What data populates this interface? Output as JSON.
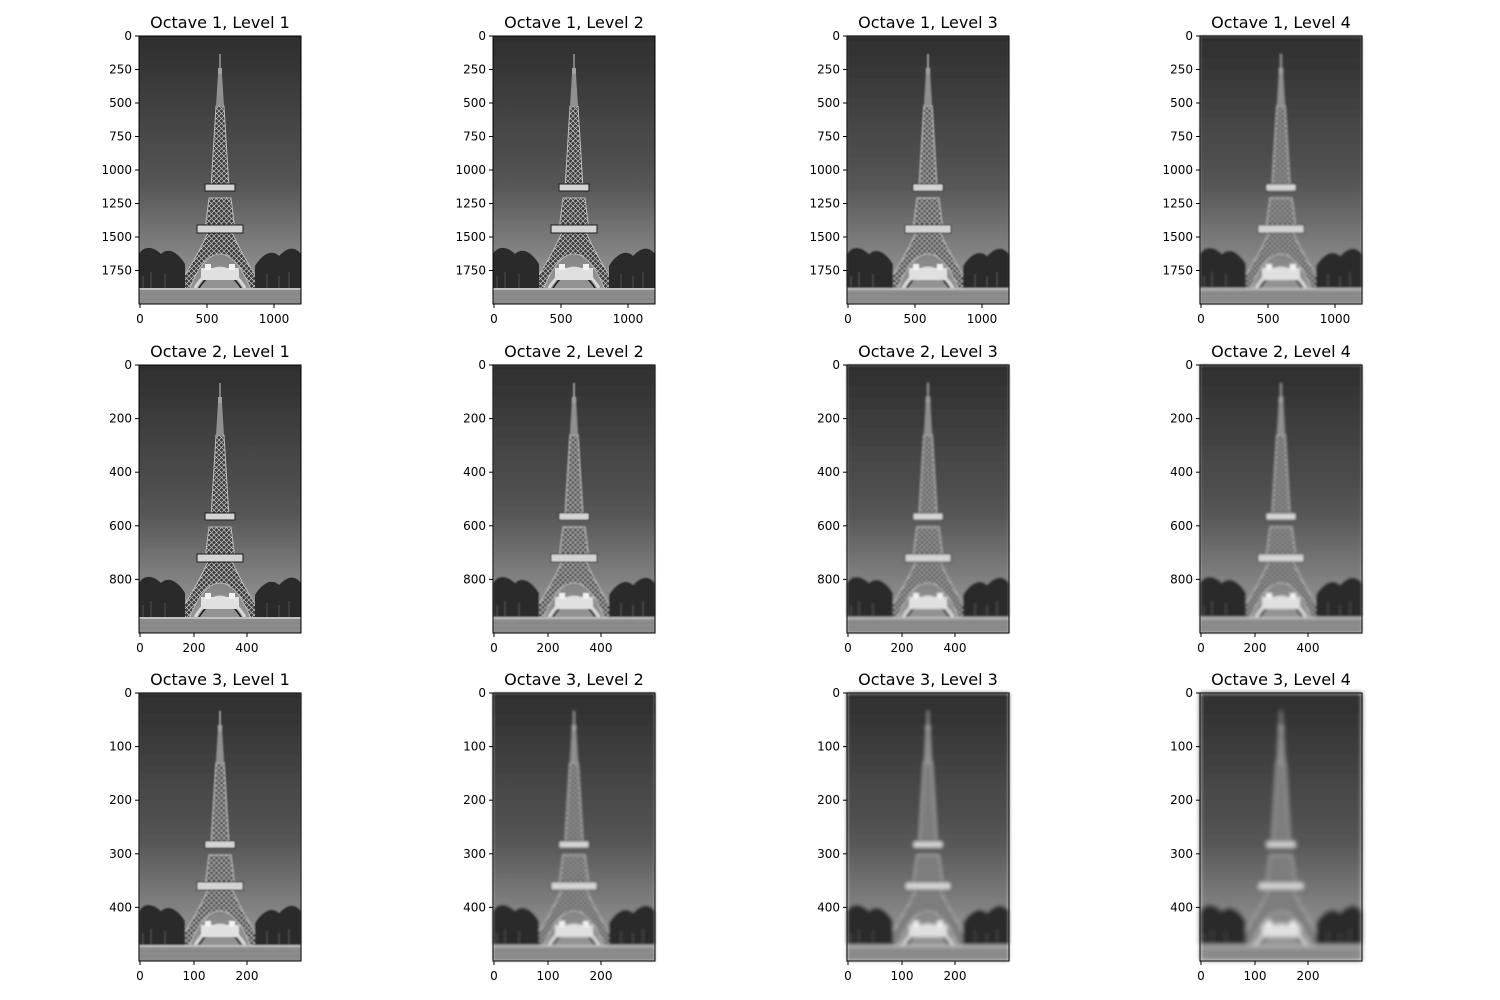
{
  "figure": {
    "panels": [
      {
        "title": "Octave 1, Level 1",
        "octave": 1,
        "level": 1,
        "blur_level": 0,
        "yticks": [
          "0",
          "250",
          "500",
          "750",
          "1000",
          "1250",
          "1500",
          "1750"
        ],
        "xticks": [
          "0",
          "500",
          "1000"
        ]
      },
      {
        "title": "Octave 1, Level 2",
        "octave": 1,
        "level": 2,
        "blur_level": 1,
        "yticks": [
          "0",
          "250",
          "500",
          "750",
          "1000",
          "1250",
          "1500",
          "1750"
        ],
        "xticks": [
          "0",
          "500",
          "1000"
        ]
      },
      {
        "title": "Octave 1, Level 3",
        "octave": 1,
        "level": 3,
        "blur_level": 2,
        "yticks": [
          "0",
          "250",
          "500",
          "750",
          "1000",
          "1250",
          "1500",
          "1750"
        ],
        "xticks": [
          "0",
          "500",
          "1000"
        ]
      },
      {
        "title": "Octave 1, Level 4",
        "octave": 1,
        "level": 4,
        "blur_level": 3,
        "yticks": [
          "0",
          "250",
          "500",
          "750",
          "1000",
          "1250",
          "1500",
          "1750"
        ],
        "xticks": [
          "0",
          "500",
          "1000"
        ]
      },
      {
        "title": "Octave 2, Level 1",
        "octave": 2,
        "level": 1,
        "blur_level": 1,
        "yticks": [
          "0",
          "200",
          "400",
          "600",
          "800"
        ],
        "xticks": [
          "0",
          "200",
          "400"
        ]
      },
      {
        "title": "Octave 2, Level 2",
        "octave": 2,
        "level": 2,
        "blur_level": 2,
        "yticks": [
          "0",
          "200",
          "400",
          "600",
          "800"
        ],
        "xticks": [
          "0",
          "200",
          "400"
        ]
      },
      {
        "title": "Octave 2, Level 3",
        "octave": 2,
        "level": 3,
        "blur_level": 3,
        "yticks": [
          "0",
          "200",
          "400",
          "600",
          "800"
        ],
        "xticks": [
          "0",
          "200",
          "400"
        ]
      },
      {
        "title": "Octave 2, Level 4",
        "octave": 2,
        "level": 4,
        "blur_level": 4,
        "yticks": [
          "0",
          "200",
          "400",
          "600",
          "800"
        ],
        "xticks": [
          "0",
          "200",
          "400"
        ]
      },
      {
        "title": "Octave 3, Level 1",
        "octave": 3,
        "level": 1,
        "blur_level": 2,
        "yticks": [
          "0",
          "100",
          "200",
          "300",
          "400"
        ],
        "xticks": [
          "0",
          "100",
          "200"
        ]
      },
      {
        "title": "Octave 3, Level 2",
        "octave": 3,
        "level": 2,
        "blur_level": 4,
        "yticks": [
          "0",
          "100",
          "200",
          "300",
          "400"
        ],
        "xticks": [
          "0",
          "100",
          "200"
        ]
      },
      {
        "title": "Octave 3, Level 3",
        "octave": 3,
        "level": 3,
        "blur_level": 5,
        "yticks": [
          "0",
          "100",
          "200",
          "300",
          "400"
        ],
        "xticks": [
          "0",
          "100",
          "200"
        ]
      },
      {
        "title": "Octave 3, Level 4",
        "octave": 3,
        "level": 4,
        "blur_level": 6,
        "yticks": [
          "0",
          "100",
          "200",
          "300",
          "400"
        ],
        "xticks": [
          "0",
          "100",
          "200"
        ]
      }
    ]
  },
  "colors": {
    "sky_top": "#2e2e2e",
    "sky_bottom": "#8a8a8a",
    "tower": "#c8c8c8",
    "trees": "#2a2a2a",
    "ground": "#8c8c8c"
  }
}
